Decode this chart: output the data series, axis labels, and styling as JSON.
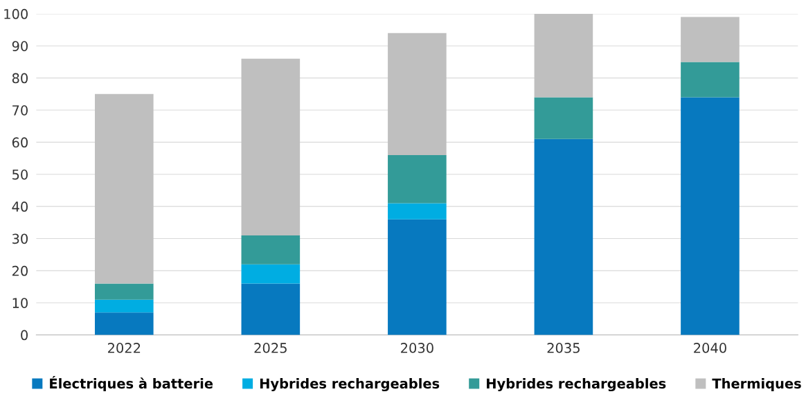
{
  "chart_data": {
    "type": "bar",
    "stacked": true,
    "categories": [
      "2022",
      "2025",
      "2030",
      "2035",
      "2040"
    ],
    "series": [
      {
        "name": "Électriques à batterie",
        "color": "#0779bf",
        "values": [
          7,
          16,
          36,
          61,
          74
        ]
      },
      {
        "name": "Hybrides rechargeables",
        "color": "#00ade2",
        "values": [
          4,
          6,
          5,
          0,
          0
        ]
      },
      {
        "name": "Hybrides rechargeables",
        "color": "#339b98",
        "values": [
          5,
          9,
          15,
          13,
          11
        ]
      },
      {
        "name": "Thermiques",
        "color": "#bfbfbf",
        "values": [
          59,
          55,
          38,
          26,
          14
        ]
      }
    ],
    "ylim": [
      0,
      100
    ],
    "yticks": [
      0,
      10,
      20,
      30,
      40,
      50,
      60,
      70,
      80,
      90,
      100
    ],
    "grid": "y",
    "legend": "bottom"
  }
}
